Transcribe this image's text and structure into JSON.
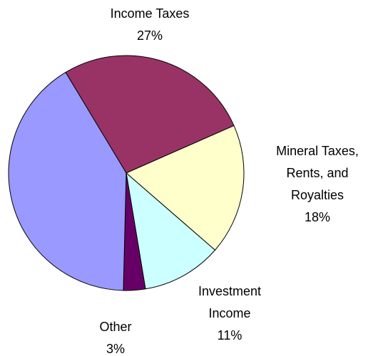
{
  "chart_data": {
    "type": "pie",
    "categories": [
      "Income Taxes",
      "Mineral Taxes, Rents, and Royalties",
      "Investment Income",
      "Other",
      null
    ],
    "values": [
      27,
      18,
      11,
      3,
      41
    ],
    "value_labels": [
      "27%",
      "18%",
      "11%",
      "3%",
      null
    ],
    "colors": [
      "#993366",
      "#ffffcc",
      "#ccffff",
      "#660066",
      "#9999ff"
    ]
  }
}
